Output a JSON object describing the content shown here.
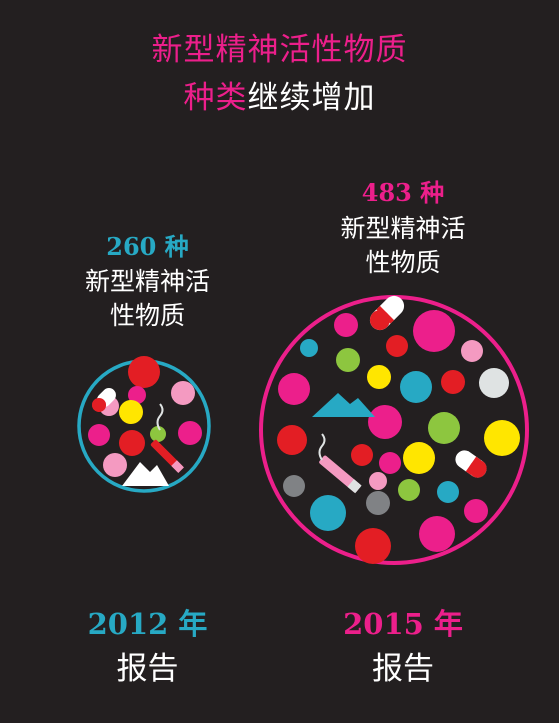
{
  "headline": {
    "line1": "新型精神活性物质",
    "line2_highlight": "种类",
    "line2_rest": "继续增加"
  },
  "report_2012": {
    "count": "260 种",
    "desc_line1": "新型精神活",
    "desc_line2": "性物质",
    "year": "2012 年",
    "label": "报告"
  },
  "report_2015": {
    "count": "483 种",
    "desc_line1": "新型精神活",
    "desc_line2": "性物质",
    "year": "2015 年",
    "label": "报告"
  },
  "colors": {
    "background": "#231f20",
    "pink": "#ec1f8b",
    "teal": "#27a9c4",
    "red": "#e31e24",
    "yellow": "#ffe600",
    "green": "#8dc63f",
    "light_pink": "#f49ac1",
    "grey": "#808285",
    "white": "#ffffff"
  }
}
